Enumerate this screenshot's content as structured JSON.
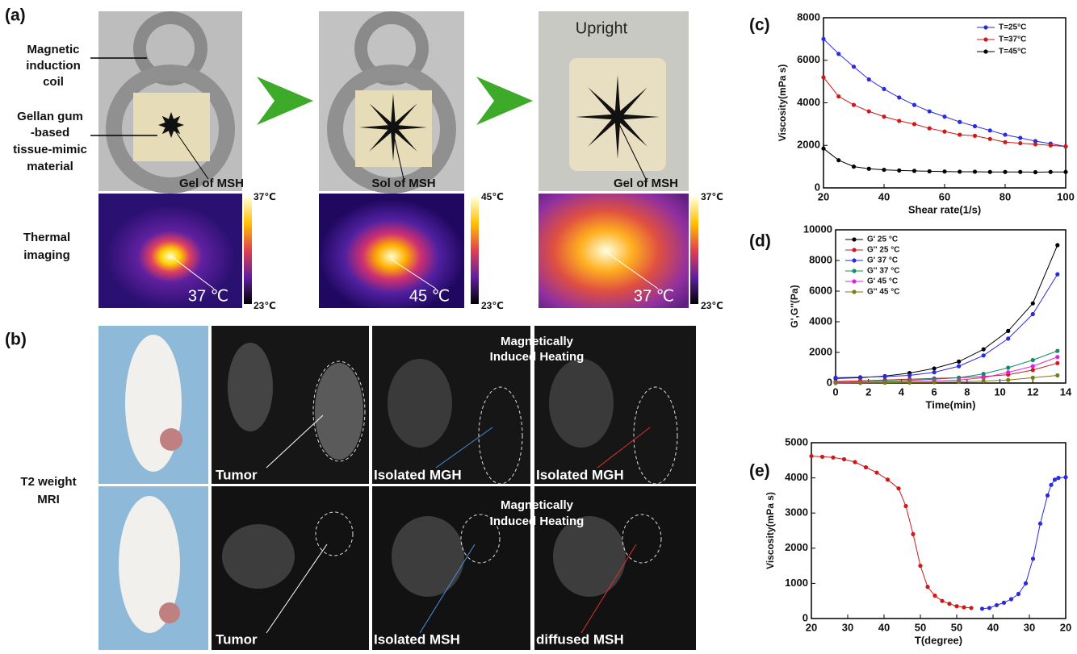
{
  "panel_labels": [
    "(a)",
    "(b)",
    "(c)",
    "(d)",
    "(e)"
  ],
  "panel_a": {
    "labels": {
      "coil": [
        "Magnetic",
        "induction",
        "coil"
      ],
      "material": [
        "Gellan gum",
        "-based",
        "tissue-mimic",
        "material"
      ],
      "thermal": [
        "Thermal",
        "imaging"
      ]
    },
    "photos": [
      {
        "caption": "Gel of MSH"
      },
      {
        "caption": "Sol of MSH"
      },
      {
        "title": "Upright",
        "caption": "Gel of MSH"
      }
    ],
    "thermal": [
      {
        "temperature": "37 ℃",
        "scale_max": "37℃",
        "scale_min": "23℃"
      },
      {
        "temperature": "45 ℃",
        "scale_max": "45℃",
        "scale_min": "23℃"
      },
      {
        "temperature": "37 ℃",
        "scale_max": "37℃",
        "scale_min": "23℃"
      }
    ]
  },
  "panel_b": {
    "row_label": [
      "T2 weight",
      "MRI"
    ],
    "rows": [
      {
        "heading": [
          "Magnetically",
          "Induced Heating"
        ],
        "captions": [
          "Tumor",
          "Isolated MGH",
          "Isolated MGH"
        ]
      },
      {
        "heading": [
          "Magnetically",
          "Induced Heating"
        ],
        "captions": [
          "Tumor",
          "Isolated MSH",
          "diffused MSH"
        ]
      }
    ]
  },
  "chart_data": [
    {
      "type": "line",
      "xlabel": "Shear rate(1/s)",
      "ylabel": "Viscosity(mPa s)",
      "x": [
        20,
        25,
        30,
        35,
        40,
        45,
        50,
        55,
        60,
        65,
        70,
        75,
        80,
        85,
        90,
        95,
        100
      ],
      "xlim": [
        20,
        100
      ],
      "xticks": [
        20,
        40,
        60,
        80,
        100
      ],
      "ylim": [
        0,
        8000
      ],
      "yticks": [
        0,
        2000,
        4000,
        6000,
        8000
      ],
      "legend": "upper right",
      "series": [
        {
          "name": "T=25°C",
          "color": "#2a2ae0",
          "values": [
            7000,
            6300,
            5700,
            5100,
            4650,
            4250,
            3900,
            3600,
            3350,
            3100,
            2900,
            2700,
            2500,
            2350,
            2200,
            2080,
            1950
          ]
        },
        {
          "name": "T=37°C",
          "color": "#d01818",
          "values": [
            5200,
            4300,
            3900,
            3600,
            3350,
            3150,
            3000,
            2800,
            2650,
            2500,
            2450,
            2300,
            2150,
            2100,
            2050,
            2000,
            1950
          ]
        },
        {
          "name": "T=45°C",
          "color": "#000000",
          "values": [
            1850,
            1300,
            1000,
            900,
            850,
            820,
            800,
            780,
            770,
            760,
            760,
            750,
            750,
            750,
            740,
            750,
            750
          ]
        }
      ]
    },
    {
      "type": "line",
      "xlabel": "Time(min)",
      "ylabel": "G',G''(Pa)",
      "x": [
        0,
        1.5,
        3,
        4.5,
        6,
        7.5,
        9,
        10.5,
        12,
        13.5
      ],
      "xlim": [
        0,
        14
      ],
      "xticks": [
        0,
        2,
        4,
        6,
        8,
        10,
        12,
        14
      ],
      "ylim": [
        0,
        10000
      ],
      "yticks": [
        0,
        2000,
        4000,
        6000,
        8000,
        10000
      ],
      "legend": "upper left",
      "series": [
        {
          "name": "G' 25 °C",
          "color": "#000000",
          "values": [
            300,
            350,
            450,
            650,
            950,
            1400,
            2200,
            3400,
            5200,
            9000
          ]
        },
        {
          "name": "G'' 25 °C",
          "color": "#d01818",
          "values": [
            100,
            150,
            200,
            250,
            300,
            350,
            420,
            550,
            850,
            1300
          ]
        },
        {
          "name": "G' 37 °C",
          "color": "#2a2ae0",
          "values": [
            350,
            380,
            420,
            500,
            700,
            1100,
            1800,
            2900,
            4500,
            7100
          ]
        },
        {
          "name": "G'' 37 °C",
          "color": "#138a6a",
          "values": [
            50,
            80,
            120,
            180,
            250,
            350,
            600,
            1000,
            1500,
            2100
          ]
        },
        {
          "name": "G' 45 °C",
          "color": "#e020e0",
          "values": [
            30,
            40,
            60,
            90,
            130,
            200,
            350,
            700,
            1100,
            1700
          ]
        },
        {
          "name": "G'' 45 °C",
          "color": "#7a7a10",
          "values": [
            0,
            10,
            20,
            30,
            50,
            80,
            130,
            200,
            350,
            500
          ]
        }
      ]
    },
    {
      "type": "line",
      "xlabel": "T(degree)",
      "ylabel": "Viscosity(mPa s)",
      "xlim": [
        0,
        70
      ],
      "xticks": [
        {
          "value": 0,
          "label": "20"
        },
        {
          "value": 10,
          "label": "30"
        },
        {
          "value": 20,
          "label": "40"
        },
        {
          "value": 30,
          "label": "50"
        },
        {
          "value": 40,
          "label": "50"
        },
        {
          "value": 50,
          "label": "40"
        },
        {
          "value": 60,
          "label": "30"
        },
        {
          "value": 70,
          "label": "20"
        }
      ],
      "ylim": [
        0,
        5000
      ],
      "yticks": [
        0,
        1000,
        2000,
        3000,
        4000,
        5000
      ],
      "series": [
        {
          "color": "#d01818",
          "x": [
            0,
            3,
            6,
            9,
            12,
            15,
            18,
            21,
            24,
            26,
            28,
            30,
            32,
            34,
            36,
            38,
            40,
            42,
            44
          ],
          "values": [
            4620,
            4600,
            4580,
            4530,
            4450,
            4300,
            4150,
            3950,
            3700,
            3200,
            2400,
            1500,
            900,
            650,
            500,
            420,
            350,
            320,
            300
          ]
        },
        {
          "color": "#2a2ae0",
          "x": [
            47,
            49,
            51,
            53,
            55,
            57,
            59,
            61,
            63,
            65,
            66,
            67,
            68,
            70
          ],
          "values": [
            280,
            300,
            380,
            450,
            550,
            700,
            1000,
            1700,
            2700,
            3500,
            3800,
            3950,
            4000,
            4020
          ]
        }
      ]
    }
  ]
}
